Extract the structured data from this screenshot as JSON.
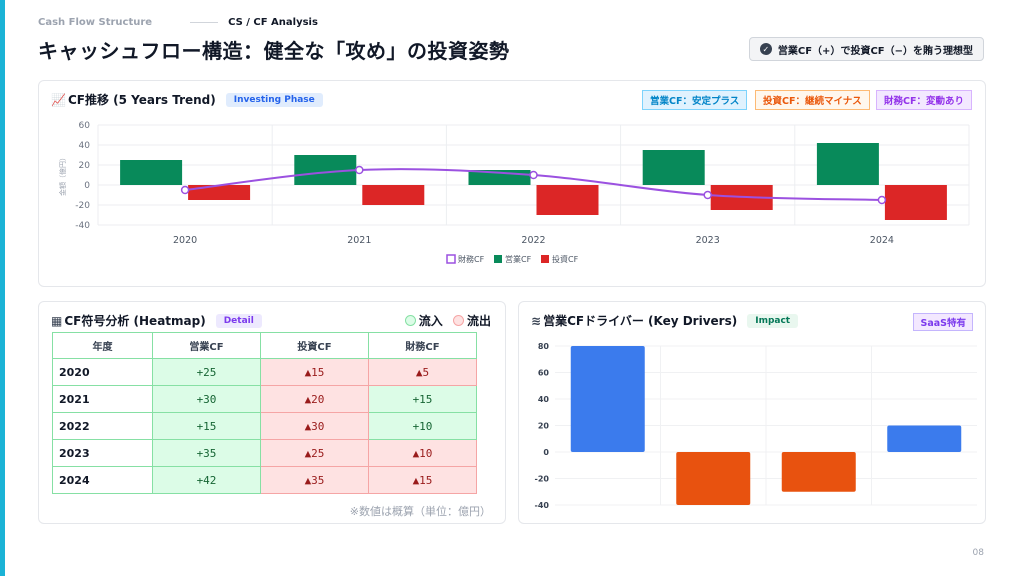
{
  "header": {
    "breadcrumb_1": "Cash Flow Structure",
    "breadcrumb_2": "CS / CF Analysis",
    "title": "キャッシュフロー構造：健全な「攻め」の投資姿勢",
    "ideal_badge": "営業CF（+）で投資CF（−）を賄う理想型"
  },
  "trend_card": {
    "title": "CF推移 (5 Years Trend)",
    "pill": "Investing Phase",
    "tags": [
      {
        "label": "営業CF：安定プラス",
        "color": "#0284c7",
        "bg": "#e0f2fe"
      },
      {
        "label": "投資CF：継続マイナス",
        "color": "#ea580c",
        "bg": "#fff7ed"
      },
      {
        "label": "財務CF：変動あり",
        "color": "#9333ea",
        "bg": "#f3e8ff"
      }
    ]
  },
  "heatmap_card": {
    "title": "CF符号分析 (Heatmap)",
    "pill": "Detail",
    "legend_in": "流入",
    "legend_out": "流出",
    "columns": [
      "年度",
      "営業CF",
      "投資CF",
      "財務CF"
    ],
    "rows": [
      {
        "year": "2020",
        "op": "+25",
        "inv": "▲15",
        "fin": "▲5"
      },
      {
        "year": "2021",
        "op": "+30",
        "inv": "▲20",
        "fin": "+15"
      },
      {
        "year": "2022",
        "op": "+15",
        "inv": "▲30",
        "fin": "+10"
      },
      {
        "year": "2023",
        "op": "+35",
        "inv": "▲25",
        "fin": "▲10"
      },
      {
        "year": "2024",
        "op": "+42",
        "inv": "▲35",
        "fin": "▲15"
      }
    ],
    "note": "※数値は概算（単位：億円）"
  },
  "drivers_card": {
    "title": "営業CFドライバー (Key Drivers)",
    "pill": "Impact",
    "tag": "SaaS特有"
  },
  "page_number": "08",
  "colors": {
    "accent": "#1bb3d6",
    "op": "#088a5a",
    "inv": "#dc2626",
    "fin": "#9b51e0",
    "driver_pos": "#3b7bed",
    "driver_neg": "#e8520f"
  },
  "chart_data": [
    {
      "type": "bar",
      "categories": [
        "2020",
        "2021",
        "2022",
        "2023",
        "2024"
      ],
      "series": [
        {
          "name": "財務CF",
          "type": "line",
          "values": [
            -5,
            15,
            10,
            -10,
            -15
          ]
        },
        {
          "name": "営業CF",
          "values": [
            25,
            30,
            15,
            35,
            42
          ]
        },
        {
          "name": "投資CF",
          "values": [
            -15,
            -20,
            -30,
            -25,
            -35
          ]
        }
      ],
      "ylabel": "金額（億円）",
      "ylim": [
        -40,
        60
      ],
      "yticks": [
        60,
        40,
        20,
        0,
        -20,
        -40
      ],
      "grid": true,
      "legend": "bottom"
    },
    {
      "type": "bar",
      "categories": [
        "",
        "",
        "",
        ""
      ],
      "values": [
        80,
        -40,
        -30,
        20
      ],
      "ylim": [
        -40,
        80
      ],
      "yticks": [
        80,
        60,
        40,
        20,
        0,
        -20,
        -40
      ],
      "grid": true
    }
  ]
}
